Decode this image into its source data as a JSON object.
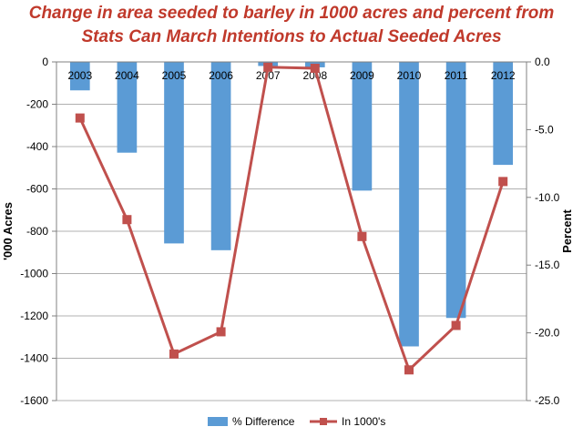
{
  "chart_data": {
    "type": "bar+line",
    "title_lines": [
      "Change in area seeded to barley in 1000 acres and percent from",
      "Stats Can March Intentions to Actual Seeded Acres"
    ],
    "categories": [
      "2003",
      "2004",
      "2005",
      "2006",
      "2007",
      "2008",
      "2009",
      "2010",
      "2011",
      "2012"
    ],
    "y_left": {
      "label": "'000 Acres",
      "min": -1600,
      "max": 0,
      "ticks": [
        0,
        -200,
        -400,
        -600,
        -800,
        -1000,
        -1200,
        -1400,
        -1600
      ]
    },
    "y_right": {
      "label": "Percent",
      "min": -25.0,
      "max": 0.0,
      "ticks": [
        "0.0",
        "-5.0",
        "-10.0",
        "-15.0",
        "-20.0",
        "-25.0"
      ]
    },
    "series": [
      {
        "name": "% Difference",
        "type": "bar",
        "axis": "right",
        "color": "#5b9bd5",
        "values": [
          -2.1,
          -6.7,
          -13.4,
          -13.9,
          -0.3,
          -0.4,
          -9.5,
          -21.0,
          -18.9,
          -7.6
        ]
      },
      {
        "name": "In 1000's",
        "type": "line",
        "axis": "left",
        "color": "#c0504d",
        "values": [
          -265,
          -745,
          -1380,
          -1275,
          -25,
          -30,
          -825,
          -1455,
          -1245,
          -565
        ]
      }
    ],
    "legend": {
      "position": "bottom"
    },
    "grid": {
      "horizontal": true
    }
  }
}
